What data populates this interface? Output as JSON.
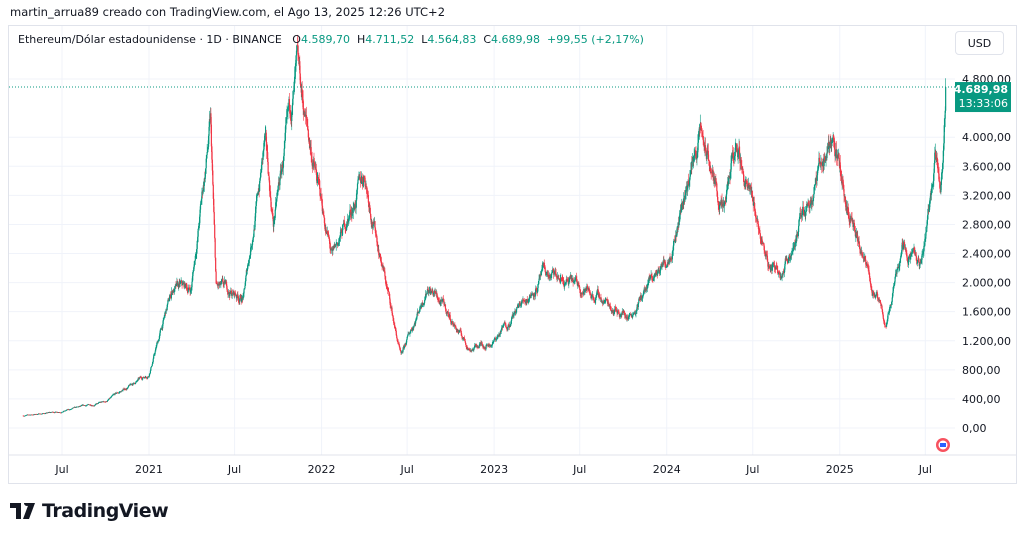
{
  "credit": "martin_arrua89 creado con TradingView.com, el Ago 13, 2025 12:26 UTC+2",
  "legend": {
    "symbol": "Ethereum/Dólar estadounidense · 1D · BINANCE",
    "o_label": "O",
    "o": "4.589,70",
    "h_label": "H",
    "h": "4.711,52",
    "l_label": "L",
    "l": "4.564,83",
    "c_label": "C",
    "c": "4.689,98",
    "change": "+99,55 (+2,17%)"
  },
  "currency_button": "USD",
  "last_price": {
    "value": "4.689,98",
    "countdown": "13:33:06"
  },
  "brand": "TradingView",
  "colors": {
    "up": "#089981",
    "down": "#f23645",
    "axis_text": "#131722",
    "grid": "#f0f3fa"
  },
  "chart_data": {
    "type": "candlestick",
    "interval": "1D",
    "ylim": [
      0,
      4800
    ],
    "y_ticks": [
      "0,00",
      "400,00",
      "800,00",
      "1.200,00",
      "1.600,00",
      "2.000,00",
      "2.400,00",
      "2.800,00",
      "3.200,00",
      "3.600,00",
      "4.000,00",
      "4.800,00"
    ],
    "y_tick_values": [
      0,
      400,
      800,
      1200,
      1600,
      2000,
      2400,
      2800,
      3200,
      3600,
      4000,
      4800
    ],
    "x_ticks": [
      "Jul",
      "2021",
      "Jul",
      "2022",
      "Jul",
      "2023",
      "Jul",
      "2024",
      "Jul",
      "2025",
      "Jul"
    ],
    "x_tick_dates": [
      "2020-07-01",
      "2021-01-01",
      "2021-07-01",
      "2022-01-01",
      "2022-07-01",
      "2023-01-01",
      "2023-07-01",
      "2024-01-01",
      "2024-07-01",
      "2025-01-01",
      "2025-07-01"
    ],
    "price_path": [
      [
        "2020-04-10",
        170
      ],
      [
        "2020-07-01",
        230
      ],
      [
        "2020-10-01",
        360
      ],
      [
        "2020-12-31",
        740
      ],
      [
        "2021-02-20",
        1900
      ],
      [
        "2021-03-31",
        1900
      ],
      [
        "2021-05-11",
        4150
      ],
      [
        "2021-05-23",
        1900
      ],
      [
        "2021-07-20",
        1800
      ],
      [
        "2021-09-03",
        3900
      ],
      [
        "2021-09-21",
        2800
      ],
      [
        "2021-11-10",
        4800
      ],
      [
        "2022-01-24",
        2300
      ],
      [
        "2022-04-02",
        3500
      ],
      [
        "2022-06-18",
        950
      ],
      [
        "2022-08-14",
        2000
      ],
      [
        "2022-11-09",
        1100
      ],
      [
        "2023-01-01",
        1200
      ],
      [
        "2023-04-15",
        2100
      ],
      [
        "2023-07-15",
        1900
      ],
      [
        "2023-10-12",
        1550
      ],
      [
        "2023-12-31",
        2300
      ],
      [
        "2024-03-12",
        4050
      ],
      [
        "2024-05-01",
        2900
      ],
      [
        "2024-05-27",
        3900
      ],
      [
        "2024-08-05",
        2200
      ],
      [
        "2024-09-06",
        2250
      ],
      [
        "2024-12-16",
        4050
      ],
      [
        "2025-02-03",
        2600
      ],
      [
        "2025-04-09",
        1400
      ],
      [
        "2025-05-13",
        2600
      ],
      [
        "2025-06-22",
        2200
      ],
      [
        "2025-07-22",
        3750
      ],
      [
        "2025-08-02",
        3400
      ],
      [
        "2025-08-13",
        4690
      ]
    ],
    "last": 4689.98
  }
}
